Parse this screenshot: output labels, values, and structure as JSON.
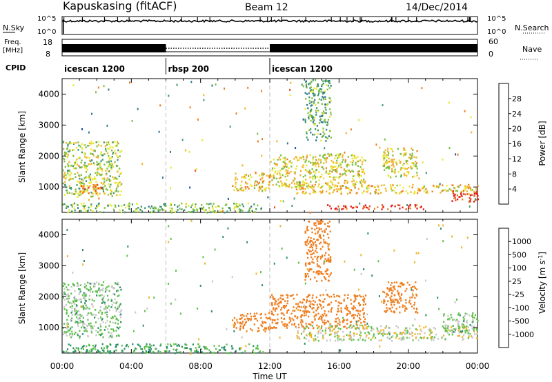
{
  "header": {
    "station": "Kapuskasing (fitACF)",
    "beam": "Beam 12",
    "date": "14/Dec/2014"
  },
  "strips": {
    "nsky_label": "N.Sky",
    "nsky_ticks": [
      "10^5",
      "10^0"
    ],
    "nsearch_label": "N.Search",
    "nsearch_ticks": [
      "10^5",
      "10^0"
    ],
    "freq_label_1": "Freq.",
    "freq_label_2": "[MHz]",
    "freq_ticks": [
      "18",
      "8"
    ],
    "nave_label": "Nave",
    "nave_ticks": [
      "60",
      "0"
    ],
    "cpid_label": "CPID",
    "cpid_segments": [
      {
        "label": "icescan 1200",
        "start_hour": 0,
        "end_hour": 6
      },
      {
        "label": "rbsp 200",
        "start_hour": 6,
        "end_hour": 12
      },
      {
        "label": "icescan 1200",
        "start_hour": 12,
        "end_hour": 24
      }
    ]
  },
  "colors": {
    "power_scale": [
      "#1a1ae6",
      "#1f4fa6",
      "#2f7a8c",
      "#3d9a6a",
      "#7fbf3f",
      "#e8e830",
      "#f0b428",
      "#ef7d1e",
      "#e8471a",
      "#e21818"
    ],
    "velocity_scale": [
      "#1a3ab0",
      "#2c6aa8",
      "#2d8f6a",
      "#5fc24a",
      "#c8c8c8",
      "#c8c8c8",
      "#f0b428",
      "#ef7d1e",
      "#e8471a",
      "#e21818"
    ]
  },
  "chart_data": [
    {
      "type": "heatmap",
      "panel": "power",
      "ylabel": "Slant Range [km]",
      "ylim": [
        180,
        4500
      ],
      "yticks": [
        1000,
        2000,
        3000,
        4000
      ],
      "xlim": [
        0,
        24
      ],
      "colorbar_label": "Power [dB]",
      "colorbar_ticks": [
        "4",
        "8",
        "12",
        "16",
        "20",
        "24",
        "28"
      ],
      "colorbar_range": [
        0,
        32
      ],
      "echo_regions": [
        {
          "start_hour": 0.0,
          "end_hour": 3.4,
          "range_min": 700,
          "range_max": 2500,
          "value": 16
        },
        {
          "start_hour": 1.0,
          "end_hour": 2.3,
          "range_min": 800,
          "range_max": 1100,
          "value": 24
        },
        {
          "start_hour": 0.0,
          "end_hour": 11.5,
          "range_min": 200,
          "range_max": 500,
          "value": 14
        },
        {
          "start_hour": 9.8,
          "end_hour": 12.0,
          "range_min": 900,
          "range_max": 1500,
          "value": 20
        },
        {
          "start_hour": 12.0,
          "end_hour": 17.5,
          "range_min": 1000,
          "range_max": 2100,
          "value": 18
        },
        {
          "start_hour": 14.0,
          "end_hour": 15.5,
          "range_min": 2500,
          "range_max": 4500,
          "value": 12
        },
        {
          "start_hour": 13.5,
          "end_hour": 24.0,
          "range_min": 800,
          "range_max": 1100,
          "value": 20
        },
        {
          "start_hour": 15.2,
          "end_hour": 21.0,
          "range_min": 300,
          "range_max": 450,
          "value": 28
        },
        {
          "start_hour": 18.5,
          "end_hour": 20.5,
          "range_min": 1300,
          "range_max": 2300,
          "value": 18
        },
        {
          "start_hour": 22.5,
          "end_hour": 24.0,
          "range_min": 550,
          "range_max": 900,
          "value": 28
        }
      ]
    },
    {
      "type": "heatmap",
      "panel": "velocity",
      "ylabel": "Slant Range [km]",
      "ylim": [
        180,
        4500
      ],
      "yticks": [
        1000,
        2000,
        3000,
        4000
      ],
      "xlim": [
        0,
        24
      ],
      "xticks": [
        "00:00",
        "04:00",
        "08:00",
        "12:00",
        "16:00",
        "20:00",
        "00:00"
      ],
      "xlabel": "Time UT",
      "colorbar_label": "Velocity [m s^-1]",
      "colorbar_ticks": [
        "1000",
        "500",
        "100",
        "25",
        "-25",
        "-100",
        "-500",
        "-1000"
      ],
      "echo_regions": [
        {
          "start_hour": 0.0,
          "end_hour": 3.4,
          "range_min": 700,
          "range_max": 2500,
          "value": 50
        },
        {
          "start_hour": 0.0,
          "end_hour": 11.5,
          "range_min": 200,
          "range_max": 500,
          "value": 100
        },
        {
          "start_hour": 9.8,
          "end_hour": 12.0,
          "range_min": 900,
          "range_max": 1500,
          "value": -300
        },
        {
          "start_hour": 12.0,
          "end_hour": 17.5,
          "range_min": 1000,
          "range_max": 2100,
          "value": -200
        },
        {
          "start_hour": 14.0,
          "end_hour": 15.5,
          "range_min": 2500,
          "range_max": 4500,
          "value": -300
        },
        {
          "start_hour": 13.5,
          "end_hour": 24.0,
          "range_min": 600,
          "range_max": 1100,
          "value": 0
        },
        {
          "start_hour": 18.5,
          "end_hour": 20.5,
          "range_min": 1500,
          "range_max": 2500,
          "value": -300
        },
        {
          "start_hour": 22.0,
          "end_hour": 24.0,
          "range_min": 800,
          "range_max": 1500,
          "value": 40
        }
      ]
    }
  ]
}
